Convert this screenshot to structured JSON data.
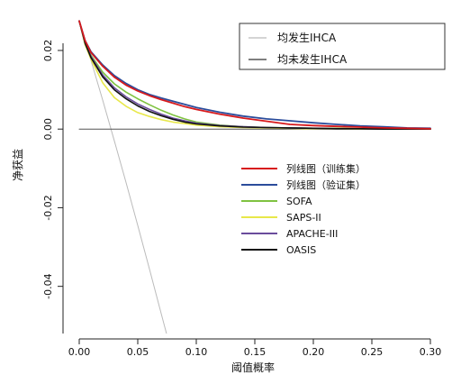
{
  "chart_data": {
    "type": "line",
    "title": "",
    "xlabel": "阈值概率",
    "ylabel": "净获益",
    "xlim": [
      0,
      0.3
    ],
    "ylim": [
      -0.052,
      0.031
    ],
    "xticks": [
      0.0,
      0.05,
      0.1,
      0.15,
      0.2,
      0.25,
      0.3
    ],
    "xtick_labels": [
      "0.00",
      "0.05",
      "0.10",
      "0.15",
      "0.20",
      "0.25",
      "0.30"
    ],
    "yticks": [
      -0.04,
      -0.02,
      0.0,
      0.02
    ],
    "ytick_labels": [
      "-0.04",
      "-0.02",
      "0.00",
      "0.02"
    ],
    "grid": false,
    "legends": {
      "top-right": [
        "all",
        "none"
      ],
      "middle-right": [
        "nomo_train",
        "nomo_valid",
        "sofa",
        "saps",
        "apache",
        "oasis"
      ]
    },
    "series": [
      {
        "id": "all",
        "name": "均发生IHCA",
        "color": "#bbbbbb",
        "x": [
          0.0,
          0.01,
          0.02,
          0.03,
          0.04,
          0.05,
          0.06,
          0.07,
          0.075
        ],
        "y": [
          0.0275,
          0.0175,
          0.0074,
          -0.003,
          -0.0136,
          -0.0245,
          -0.0356,
          -0.0469,
          -0.0525
        ]
      },
      {
        "id": "none",
        "name": "均未发生IHCA",
        "color": "#555555",
        "x": [
          0.0,
          0.3
        ],
        "y": [
          0.0,
          0.0
        ]
      },
      {
        "id": "nomo_train",
        "name": "列线图（训练集）",
        "color": "#d7191c",
        "x": [
          0.0,
          0.005,
          0.01,
          0.02,
          0.03,
          0.04,
          0.05,
          0.06,
          0.07,
          0.08,
          0.09,
          0.1,
          0.12,
          0.14,
          0.16,
          0.18,
          0.2,
          0.22,
          0.24,
          0.26,
          0.28,
          0.3
        ],
        "y": [
          0.0275,
          0.0225,
          0.0195,
          0.016,
          0.0132,
          0.0112,
          0.0097,
          0.0085,
          0.0075,
          0.0066,
          0.0057,
          0.005,
          0.0038,
          0.0028,
          0.002,
          0.0012,
          0.0009,
          0.0007,
          0.0005,
          0.0003,
          0.0002,
          0.0001
        ]
      },
      {
        "id": "nomo_valid",
        "name": "列线图（验证集）",
        "color": "#2b4c9b",
        "x": [
          0.0,
          0.005,
          0.01,
          0.02,
          0.03,
          0.04,
          0.05,
          0.06,
          0.07,
          0.08,
          0.09,
          0.1,
          0.12,
          0.14,
          0.16,
          0.18,
          0.2,
          0.22,
          0.24,
          0.26,
          0.28,
          0.3
        ],
        "y": [
          0.0275,
          0.0225,
          0.0197,
          0.0163,
          0.0136,
          0.0116,
          0.01,
          0.0088,
          0.0079,
          0.0071,
          0.0063,
          0.0055,
          0.0043,
          0.0033,
          0.0026,
          0.0021,
          0.0016,
          0.0012,
          0.0008,
          0.0006,
          0.0003,
          0.0002
        ]
      },
      {
        "id": "sofa",
        "name": "SOFA",
        "color": "#7fc241",
        "x": [
          0.0,
          0.005,
          0.01,
          0.02,
          0.03,
          0.04,
          0.05,
          0.06,
          0.07,
          0.08,
          0.09,
          0.1,
          0.12,
          0.14,
          0.16,
          0.18,
          0.2,
          0.22,
          0.24,
          0.26,
          0.28,
          0.3
        ],
        "y": [
          0.0275,
          0.0222,
          0.0188,
          0.0145,
          0.0115,
          0.0094,
          0.0077,
          0.0062,
          0.0048,
          0.0036,
          0.0026,
          0.0018,
          0.001,
          0.0006,
          0.0004,
          0.0003,
          0.0002,
          0.0002,
          0.0001,
          0.0001,
          0.0,
          0.0
        ]
      },
      {
        "id": "saps",
        "name": "SAPS-II",
        "color": "#e8e84a",
        "x": [
          0.0,
          0.005,
          0.01,
          0.02,
          0.03,
          0.04,
          0.05,
          0.06,
          0.07,
          0.08,
          0.09,
          0.1,
          0.12,
          0.14,
          0.16,
          0.18,
          0.2,
          0.22,
          0.24,
          0.26,
          0.28,
          0.3
        ],
        "y": [
          0.0275,
          0.0215,
          0.0178,
          0.0118,
          0.008,
          0.0058,
          0.0042,
          0.0032,
          0.0024,
          0.0018,
          0.0014,
          0.001,
          0.0006,
          0.0004,
          0.0003,
          0.0002,
          0.0001,
          0.0001,
          0.0,
          0.0,
          0.0,
          0.0
        ]
      },
      {
        "id": "apache",
        "name": "APACHE-III",
        "color": "#6a4c9c",
        "x": [
          0.0,
          0.005,
          0.01,
          0.02,
          0.03,
          0.04,
          0.05,
          0.06,
          0.07,
          0.08,
          0.09,
          0.1,
          0.12,
          0.14,
          0.16,
          0.18,
          0.2,
          0.22,
          0.24,
          0.26,
          0.28,
          0.3
        ],
        "y": [
          0.0275,
          0.022,
          0.0185,
          0.0138,
          0.0105,
          0.0082,
          0.0064,
          0.005,
          0.0038,
          0.0028,
          0.0021,
          0.0015,
          0.0009,
          0.0006,
          0.0004,
          0.0003,
          0.0002,
          0.0001,
          0.0001,
          0.0,
          0.0,
          0.0
        ]
      },
      {
        "id": "oasis",
        "name": "OASIS",
        "color": "#111111",
        "x": [
          0.0,
          0.005,
          0.01,
          0.02,
          0.03,
          0.04,
          0.05,
          0.06,
          0.07,
          0.08,
          0.09,
          0.1,
          0.12,
          0.14,
          0.16,
          0.18,
          0.2,
          0.22,
          0.24,
          0.26,
          0.28,
          0.3
        ],
        "y": [
          0.0275,
          0.0218,
          0.0182,
          0.0133,
          0.01,
          0.0077,
          0.0059,
          0.0045,
          0.0034,
          0.0025,
          0.0018,
          0.0013,
          0.0008,
          0.0005,
          0.0004,
          0.0003,
          0.0002,
          0.0001,
          0.0001,
          0.0,
          0.0,
          0.0
        ]
      }
    ]
  }
}
